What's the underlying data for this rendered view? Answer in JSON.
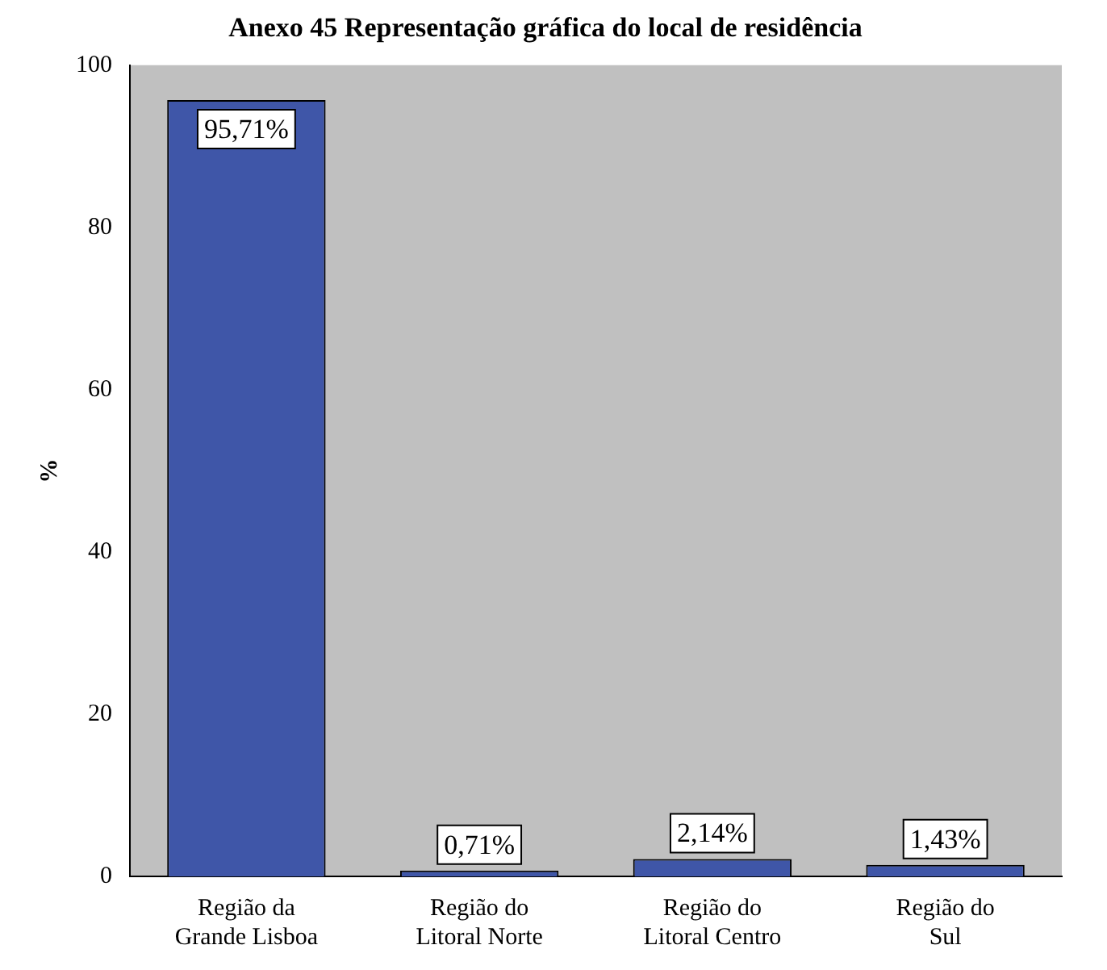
{
  "chart_data": {
    "type": "bar",
    "title": "Anexo 45 Representação gráfica do local de residência",
    "ylabel": "%",
    "categories": [
      "Região da Grande Lisboa",
      "Região do Litoral Norte",
      "Região do Litoral Centro",
      "Região do Sul"
    ],
    "values": [
      95.71,
      0.71,
      2.14,
      1.43
    ],
    "value_labels": [
      "95,71%",
      "0,71%",
      "2,14%",
      "1,43%"
    ],
    "color": "#3f56a8",
    "ylim": [
      0,
      100
    ],
    "yticks": [
      0,
      20,
      40,
      60,
      80,
      100
    ],
    "grid": false,
    "legend": false
  }
}
